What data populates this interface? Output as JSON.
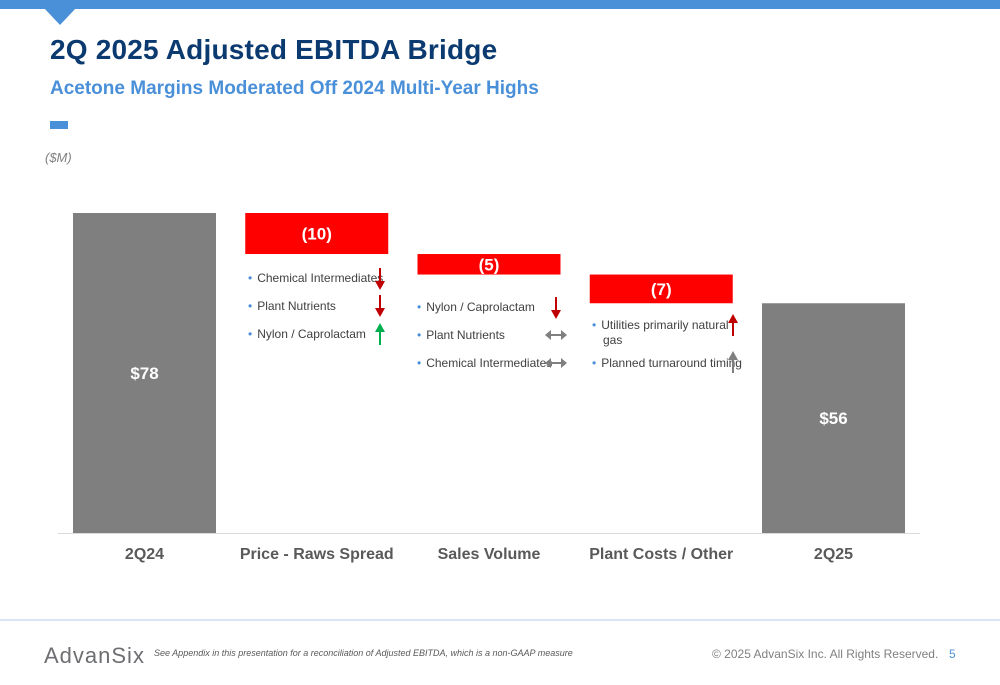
{
  "header": {
    "title": "2Q 2025 Adjusted EBITDA Bridge",
    "subtitle": "Acetone Margins Moderated Off 2024 Multi-Year Highs",
    "unit_label": "($M)"
  },
  "chart_data": {
    "type": "bar",
    "subtype": "waterfall",
    "categories": [
      "2Q24",
      "Price - Raws Spread",
      "Sales Volume",
      "Plant Costs / Other",
      "2Q25"
    ],
    "values": [
      78,
      -10,
      -5,
      -7,
      56
    ],
    "value_labels": [
      "$78",
      "(10)",
      "(5)",
      "(7)",
      "$56"
    ],
    "bar_kinds": [
      "total",
      "delta",
      "delta",
      "delta",
      "total"
    ],
    "ylim": [
      0,
      78
    ],
    "grid": false,
    "colors": {
      "total": "#7f7f7f",
      "decrease": "#ff0000",
      "axis": "#d9d9d9",
      "label_light": "#ffffff",
      "category_label": "#595959"
    }
  },
  "drivers": [
    {
      "category": "Price - Raws Spread",
      "items": [
        {
          "text": "Chemical Intermediates",
          "direction": "down"
        },
        {
          "text": "Plant Nutrients",
          "direction": "down"
        },
        {
          "text": "Nylon / Caprolactam",
          "direction": "up-green"
        }
      ]
    },
    {
      "category": "Sales Volume",
      "items": [
        {
          "text": "Nylon / Caprolactam",
          "direction": "down"
        },
        {
          "text": "Plant Nutrients",
          "direction": "flat"
        },
        {
          "text": "Chemical Intermediates",
          "direction": "flat"
        }
      ]
    },
    {
      "category": "Plant Costs / Other",
      "items": [
        {
          "text": "Utilities primarily natural gas",
          "line1": "Utilities primarily natural",
          "line2": "gas",
          "direction": "up-red"
        },
        {
          "text": "Planned turnaround timing",
          "direction": "up-gray"
        }
      ]
    }
  ],
  "arrow_colors": {
    "down": "#c00000",
    "up-red": "#c00000",
    "up-green": "#00b050",
    "up-gray": "#7f7f7f",
    "flat": "#7f7f7f"
  },
  "footer": {
    "logo_text": "AdvanSix",
    "note": "See Appendix in this presentation for a reconciliation of Adjusted EBITDA, which is a non-GAAP measure",
    "copyright": "© 2025 AdvanSix Inc. All Rights Reserved.",
    "page_number": "5"
  }
}
